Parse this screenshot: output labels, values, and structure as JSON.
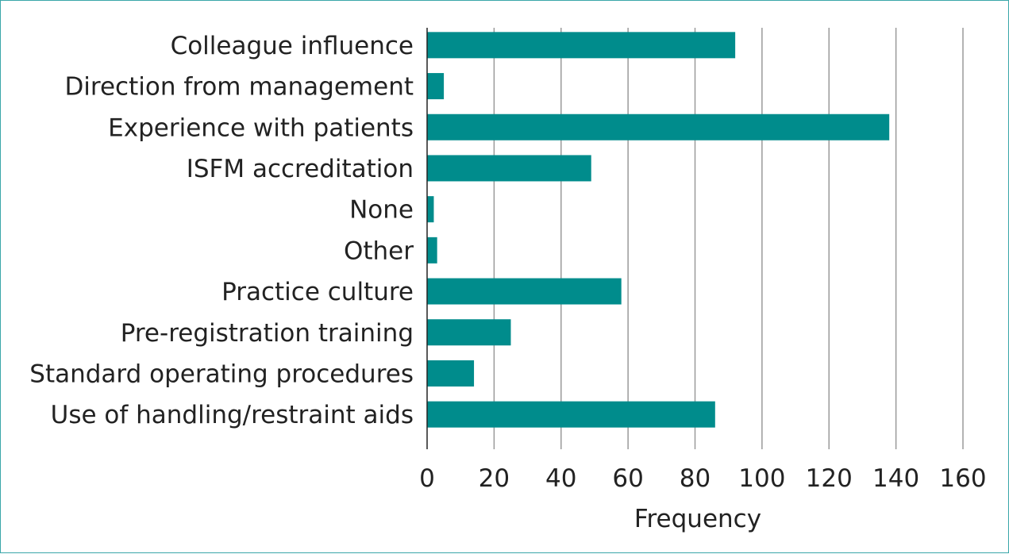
{
  "colors": {
    "bar": "#008c8c",
    "grid": "#9a9a9a",
    "axis": "#222222",
    "frame": "#3aa7a9"
  },
  "chart_data": {
    "type": "bar",
    "orientation": "horizontal",
    "categories": [
      "Colleague influence",
      "Direction from management",
      "Experience with patients",
      "ISFM accreditation",
      "None",
      "Other",
      "Practice culture",
      "Pre-registration training",
      "Standard operating procedures",
      "Use of handling/restraint aids"
    ],
    "values": [
      92,
      5,
      138,
      49,
      2,
      3,
      58,
      25,
      14,
      86
    ],
    "xlabel": "Frequency",
    "ylabel": "",
    "title": "",
    "xlim": [
      0,
      160
    ],
    "xticks": [
      0,
      20,
      40,
      60,
      80,
      100,
      120,
      140,
      160
    ],
    "grid": "vertical",
    "legend": "none"
  }
}
